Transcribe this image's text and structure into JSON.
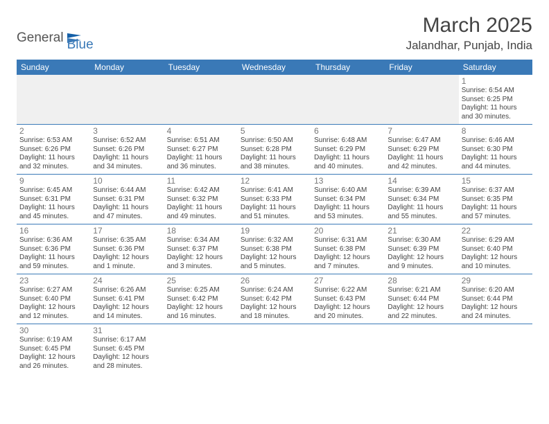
{
  "logo": {
    "part1": "General",
    "part2": "Blue"
  },
  "title": "March 2025",
  "location": "Jalandhar, Punjab, India",
  "colors": {
    "header_bg": "#3a79b7",
    "header_text": "#ffffff",
    "border": "#3a79b7",
    "text": "#444444",
    "daynum": "#777777",
    "empty_bg": "#f0f0f0"
  },
  "weekdays": [
    "Sunday",
    "Monday",
    "Tuesday",
    "Wednesday",
    "Thursday",
    "Friday",
    "Saturday"
  ],
  "weeks": [
    [
      null,
      null,
      null,
      null,
      null,
      null,
      {
        "n": "1",
        "sr": "Sunrise: 6:54 AM",
        "ss": "Sunset: 6:25 PM",
        "dl": "Daylight: 11 hours and 30 minutes."
      }
    ],
    [
      {
        "n": "2",
        "sr": "Sunrise: 6:53 AM",
        "ss": "Sunset: 6:26 PM",
        "dl": "Daylight: 11 hours and 32 minutes."
      },
      {
        "n": "3",
        "sr": "Sunrise: 6:52 AM",
        "ss": "Sunset: 6:26 PM",
        "dl": "Daylight: 11 hours and 34 minutes."
      },
      {
        "n": "4",
        "sr": "Sunrise: 6:51 AM",
        "ss": "Sunset: 6:27 PM",
        "dl": "Daylight: 11 hours and 36 minutes."
      },
      {
        "n": "5",
        "sr": "Sunrise: 6:50 AM",
        "ss": "Sunset: 6:28 PM",
        "dl": "Daylight: 11 hours and 38 minutes."
      },
      {
        "n": "6",
        "sr": "Sunrise: 6:48 AM",
        "ss": "Sunset: 6:29 PM",
        "dl": "Daylight: 11 hours and 40 minutes."
      },
      {
        "n": "7",
        "sr": "Sunrise: 6:47 AM",
        "ss": "Sunset: 6:29 PM",
        "dl": "Daylight: 11 hours and 42 minutes."
      },
      {
        "n": "8",
        "sr": "Sunrise: 6:46 AM",
        "ss": "Sunset: 6:30 PM",
        "dl": "Daylight: 11 hours and 44 minutes."
      }
    ],
    [
      {
        "n": "9",
        "sr": "Sunrise: 6:45 AM",
        "ss": "Sunset: 6:31 PM",
        "dl": "Daylight: 11 hours and 45 minutes."
      },
      {
        "n": "10",
        "sr": "Sunrise: 6:44 AM",
        "ss": "Sunset: 6:31 PM",
        "dl": "Daylight: 11 hours and 47 minutes."
      },
      {
        "n": "11",
        "sr": "Sunrise: 6:42 AM",
        "ss": "Sunset: 6:32 PM",
        "dl": "Daylight: 11 hours and 49 minutes."
      },
      {
        "n": "12",
        "sr": "Sunrise: 6:41 AM",
        "ss": "Sunset: 6:33 PM",
        "dl": "Daylight: 11 hours and 51 minutes."
      },
      {
        "n": "13",
        "sr": "Sunrise: 6:40 AM",
        "ss": "Sunset: 6:34 PM",
        "dl": "Daylight: 11 hours and 53 minutes."
      },
      {
        "n": "14",
        "sr": "Sunrise: 6:39 AM",
        "ss": "Sunset: 6:34 PM",
        "dl": "Daylight: 11 hours and 55 minutes."
      },
      {
        "n": "15",
        "sr": "Sunrise: 6:37 AM",
        "ss": "Sunset: 6:35 PM",
        "dl": "Daylight: 11 hours and 57 minutes."
      }
    ],
    [
      {
        "n": "16",
        "sr": "Sunrise: 6:36 AM",
        "ss": "Sunset: 6:36 PM",
        "dl": "Daylight: 11 hours and 59 minutes."
      },
      {
        "n": "17",
        "sr": "Sunrise: 6:35 AM",
        "ss": "Sunset: 6:36 PM",
        "dl": "Daylight: 12 hours and 1 minute."
      },
      {
        "n": "18",
        "sr": "Sunrise: 6:34 AM",
        "ss": "Sunset: 6:37 PM",
        "dl": "Daylight: 12 hours and 3 minutes."
      },
      {
        "n": "19",
        "sr": "Sunrise: 6:32 AM",
        "ss": "Sunset: 6:38 PM",
        "dl": "Daylight: 12 hours and 5 minutes."
      },
      {
        "n": "20",
        "sr": "Sunrise: 6:31 AM",
        "ss": "Sunset: 6:38 PM",
        "dl": "Daylight: 12 hours and 7 minutes."
      },
      {
        "n": "21",
        "sr": "Sunrise: 6:30 AM",
        "ss": "Sunset: 6:39 PM",
        "dl": "Daylight: 12 hours and 9 minutes."
      },
      {
        "n": "22",
        "sr": "Sunrise: 6:29 AM",
        "ss": "Sunset: 6:40 PM",
        "dl": "Daylight: 12 hours and 10 minutes."
      }
    ],
    [
      {
        "n": "23",
        "sr": "Sunrise: 6:27 AM",
        "ss": "Sunset: 6:40 PM",
        "dl": "Daylight: 12 hours and 12 minutes."
      },
      {
        "n": "24",
        "sr": "Sunrise: 6:26 AM",
        "ss": "Sunset: 6:41 PM",
        "dl": "Daylight: 12 hours and 14 minutes."
      },
      {
        "n": "25",
        "sr": "Sunrise: 6:25 AM",
        "ss": "Sunset: 6:42 PM",
        "dl": "Daylight: 12 hours and 16 minutes."
      },
      {
        "n": "26",
        "sr": "Sunrise: 6:24 AM",
        "ss": "Sunset: 6:42 PM",
        "dl": "Daylight: 12 hours and 18 minutes."
      },
      {
        "n": "27",
        "sr": "Sunrise: 6:22 AM",
        "ss": "Sunset: 6:43 PM",
        "dl": "Daylight: 12 hours and 20 minutes."
      },
      {
        "n": "28",
        "sr": "Sunrise: 6:21 AM",
        "ss": "Sunset: 6:44 PM",
        "dl": "Daylight: 12 hours and 22 minutes."
      },
      {
        "n": "29",
        "sr": "Sunrise: 6:20 AM",
        "ss": "Sunset: 6:44 PM",
        "dl": "Daylight: 12 hours and 24 minutes."
      }
    ],
    [
      {
        "n": "30",
        "sr": "Sunrise: 6:19 AM",
        "ss": "Sunset: 6:45 PM",
        "dl": "Daylight: 12 hours and 26 minutes."
      },
      {
        "n": "31",
        "sr": "Sunrise: 6:17 AM",
        "ss": "Sunset: 6:45 PM",
        "dl": "Daylight: 12 hours and 28 minutes."
      },
      null,
      null,
      null,
      null,
      null
    ]
  ]
}
